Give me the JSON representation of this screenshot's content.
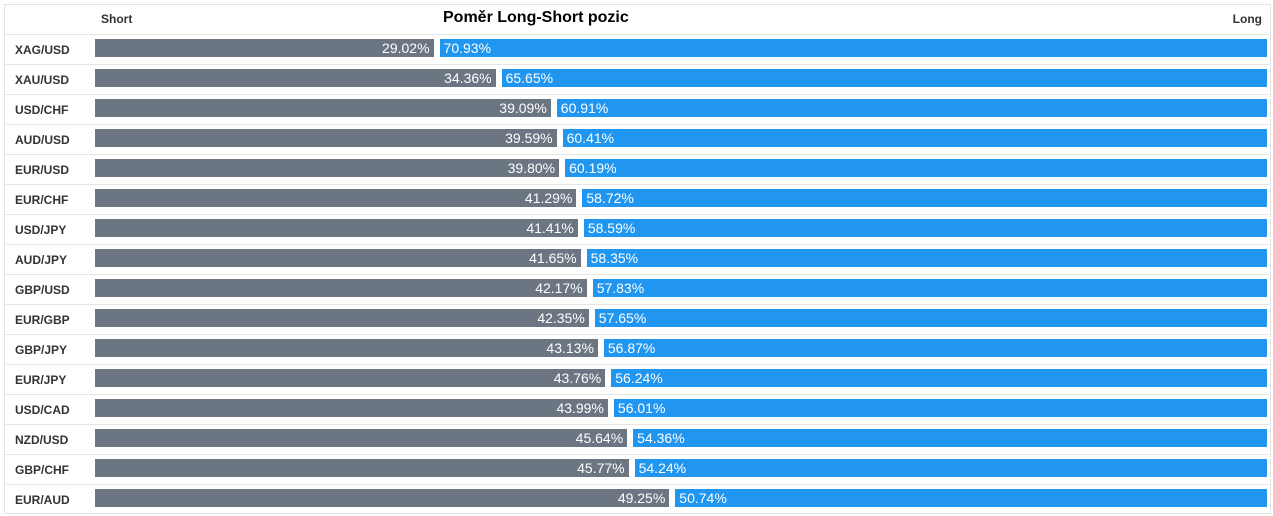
{
  "header": {
    "title": "Poměr Long-Short pozic",
    "short_label": "Short",
    "long_label": "Long"
  },
  "colors": {
    "short": "#6c7582",
    "long": "#2196f0"
  },
  "chart_data": {
    "type": "bar",
    "stacked": true,
    "orientation": "horizontal",
    "title": "Poměr Long-Short pozic",
    "categories": [
      "XAG/USD",
      "XAU/USD",
      "USD/CHF",
      "AUD/USD",
      "EUR/USD",
      "EUR/CHF",
      "USD/JPY",
      "AUD/JPY",
      "GBP/USD",
      "EUR/GBP",
      "GBP/JPY",
      "EUR/JPY",
      "USD/CAD",
      "NZD/USD",
      "GBP/CHF",
      "EUR/AUD"
    ],
    "series": [
      {
        "name": "Short",
        "values": [
          29.02,
          34.36,
          39.09,
          39.59,
          39.8,
          41.29,
          41.41,
          41.65,
          42.17,
          42.35,
          43.13,
          43.76,
          43.99,
          45.64,
          45.77,
          49.25
        ],
        "labels": [
          "29.02%",
          "34.36%",
          "39.09%",
          "39.59%",
          "39.80%",
          "41.29%",
          "41.41%",
          "41.65%",
          "42.17%",
          "42.35%",
          "43.13%",
          "43.76%",
          "43.99%",
          "45.64%",
          "45.77%",
          "49.25%"
        ]
      },
      {
        "name": "Long",
        "values": [
          70.93,
          65.65,
          60.91,
          60.41,
          60.19,
          58.72,
          58.59,
          58.35,
          57.83,
          57.65,
          56.87,
          56.24,
          56.01,
          54.36,
          54.24,
          50.74
        ],
        "labels": [
          "70.93%",
          "65.65%",
          "60.91%",
          "60.41%",
          "60.19%",
          "58.72%",
          "58.59%",
          "58.35%",
          "57.83%",
          "57.65%",
          "56.87%",
          "56.24%",
          "56.01%",
          "54.36%",
          "54.24%",
          "50.74%"
        ]
      }
    ],
    "xlim": [
      0,
      100
    ],
    "grid": false,
    "legend": "top"
  }
}
